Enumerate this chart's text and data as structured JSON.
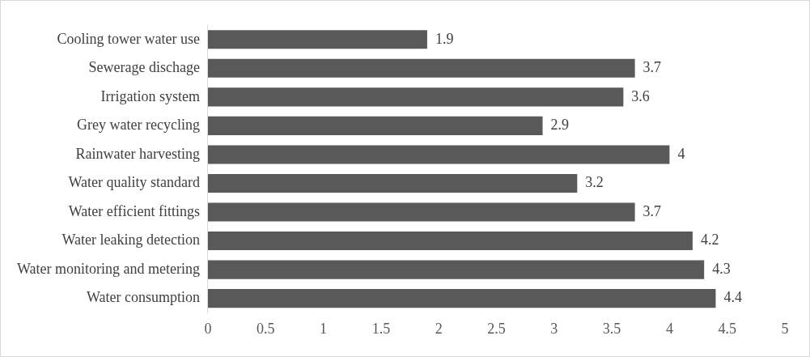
{
  "chart_data": {
    "type": "bar",
    "orientation": "horizontal",
    "categories": [
      "Cooling tower water use",
      "Sewerage dischage",
      "Irrigation system",
      "Grey water recycling",
      "Rainwater harvesting",
      "Water quality standard",
      "Water efficient fittings",
      "Water leaking detection",
      "Water monitoring and metering",
      "Water consumption"
    ],
    "values": [
      1.9,
      3.7,
      3.6,
      2.9,
      4,
      3.2,
      3.7,
      4.2,
      4.3,
      4.4
    ],
    "color": "#595959",
    "xlim": [
      0,
      5
    ],
    "xticks": [
      0,
      0.5,
      1,
      1.5,
      2,
      2.5,
      3,
      3.5,
      4,
      4.5,
      5
    ],
    "grid": false,
    "legend": false,
    "data_labels": true
  }
}
